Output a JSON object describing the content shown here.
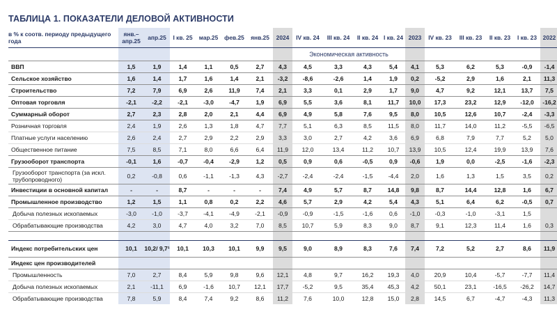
{
  "title": "ТАБЛИЦА 1. ПОКАЗАТЕЛИ ДЕЛОВОЙ АКТИВНОСТИ",
  "header": {
    "label": "в % к соотв. периоду предыдущего года",
    "columns": [
      "янв.– апр.25",
      "апр.25",
      "I кв. 25",
      "мар.25",
      "фев.25",
      "янв.25",
      "2024",
      "IV кв. 24",
      "III кв. 24",
      "II кв. 24",
      "I кв. 24",
      "2023",
      "IV кв. 23",
      "III кв. 23",
      "II кв. 23",
      "I кв. 23",
      "2022"
    ]
  },
  "section_title": "Экономическая активность",
  "rows": [
    {
      "label": "ВВП",
      "values": [
        "1,5",
        "1,9",
        "1,4",
        "1,1",
        "0,5",
        "2,7",
        "4,3",
        "4,5",
        "3,3",
        "4,3",
        "5,4",
        "4,1",
        "5,3",
        "6,2",
        "5,3",
        "-0,9",
        "-1,4"
      ]
    },
    {
      "label": "Сельское хозяйство",
      "values": [
        "1,6",
        "1,4",
        "1,7",
        "1,6",
        "1,4",
        "2,1",
        "-3,2",
        "-8,6",
        "-2,6",
        "1,4",
        "1,9",
        "0,2",
        "-5,2",
        "2,9",
        "1,6",
        "2,1",
        "11,3"
      ]
    },
    {
      "label": "Строительство",
      "values": [
        "7,2",
        "7,9",
        "6,9",
        "2,6",
        "11,9",
        "7,4",
        "2,1",
        "3,3",
        "0,1",
        "2,9",
        "1,7",
        "9,0",
        "4,7",
        "9,2",
        "12,1",
        "13,7",
        "7,5"
      ]
    },
    {
      "label": "Оптовая торговля",
      "values": [
        "-2,1",
        "-2,2",
        "-2,1",
        "-3,0",
        "-4,7",
        "1,9",
        "6,9",
        "5,5",
        "3,6",
        "8,1",
        "11,7",
        "10,0",
        "17,3",
        "23,2",
        "12,9",
        "-12,0",
        "-16,2"
      ]
    },
    {
      "label": "Суммарный оборот",
      "values": [
        "2,7",
        "2,3",
        "2,8",
        "2,0",
        "2,1",
        "4,4",
        "6,9",
        "4,9",
        "5,8",
        "7,6",
        "9,5",
        "8,0",
        "10,5",
        "12,6",
        "10,7",
        "-2,4",
        "-3,3"
      ]
    },
    {
      "label": "Розничная торговля",
      "values": [
        "2,4",
        "1,9",
        "2,6",
        "1,3",
        "1,8",
        "4,7",
        "7,7",
        "5,1",
        "6,3",
        "8,5",
        "11,5",
        "8,0",
        "11,7",
        "14,0",
        "11,2",
        "-5,5",
        "-6,5"
      ]
    },
    {
      "label": "Платные услуги населению",
      "values": [
        "2,6",
        "2,4",
        "2,7",
        "2,9",
        "2,2",
        "2,9",
        "3,3",
        "3,0",
        "2,7",
        "4,2",
        "3,6",
        "6,9",
        "6,8",
        "7,9",
        "7,7",
        "5,2",
        "5,0"
      ]
    },
    {
      "label": "Общественное питание",
      "values": [
        "7,5",
        "8,5",
        "7,1",
        "8,0",
        "6,6",
        "6,4",
        "11,9",
        "12,0",
        "13,4",
        "11,2",
        "10,7",
        "13,9",
        "10,5",
        "12,4",
        "19,9",
        "13,9",
        "7,6"
      ]
    },
    {
      "label": "Грузооборот транспорта",
      "values": [
        "-0,1",
        "1,6",
        "-0,7",
        "-0,4",
        "-2,9",
        "1,2",
        "0,5",
        "0,9",
        "0,6",
        "-0,5",
        "0,9",
        "-0,6",
        "1,9",
        "0,0",
        "-2,5",
        "-1,6",
        "-2,3"
      ]
    },
    {
      "label": "Грузооборот транспорта (за искл. трубопроводного)",
      "values": [
        "0,2",
        "-0,8",
        "0,6",
        "-1,1",
        "-1,3",
        "4,3",
        "-2,7",
        "-2,4",
        "-2,4",
        "-1,5",
        "-4,4",
        "2,0",
        "1,6",
        "1,3",
        "1,5",
        "3,5",
        "0,2"
      ]
    },
    {
      "label": "Инвестиции в основной капитал",
      "values": [
        "-",
        "-",
        "8,7",
        "-",
        "-",
        "-",
        "7,4",
        "4,9",
        "5,7",
        "8,7",
        "14,8",
        "9,8",
        "8,7",
        "14,4",
        "12,8",
        "1,6",
        "6,7"
      ]
    },
    {
      "label": "Промышленное производство",
      "values": [
        "1,2",
        "1,5",
        "1,1",
        "0,8",
        "0,2",
        "2,2",
        "4,6",
        "5,7",
        "2,9",
        "4,2",
        "5,4",
        "4,3",
        "5,1",
        "6,4",
        "6,2",
        "-0,5",
        "0,7"
      ]
    },
    {
      "label": "Добыча полезных ископаемых",
      "values": [
        "-3,0",
        "-1,0",
        "-3,7",
        "-4,1",
        "-4,9",
        "-2,1",
        "-0,9",
        "-0,9",
        "-1,5",
        "-1,6",
        "0,6",
        "-1,0",
        "-0,3",
        "-1,0",
        "-3,1",
        "1,5",
        ""
      ]
    },
    {
      "label": "Обрабатывающие производства",
      "values": [
        "4,2",
        "3,0",
        "4,7",
        "4,0",
        "3,2",
        "7,0",
        "8,5",
        "10,7",
        "5,9",
        "8,3",
        "9,0",
        "8,7",
        "9,1",
        "12,3",
        "11,4",
        "1,6",
        "0,3"
      ]
    },
    {
      "label": "Индекс потребительских цен",
      "values": [
        "10,1",
        "10,2/ 9,7¹",
        "10,1",
        "10,3",
        "10,1",
        "9,9",
        "9,5",
        "9,0",
        "8,9",
        "8,3",
        "7,6",
        "7,4",
        "7,2",
        "5,2",
        "2,7",
        "8,6",
        "11,9"
      ]
    },
    {
      "label": "Индекс цен производителей",
      "values": []
    },
    {
      "label": "Промышленность",
      "values": [
        "7,0",
        "2,7",
        "8,4",
        "5,9",
        "9,8",
        "9,6",
        "12,1",
        "4,8",
        "9,7",
        "16,2",
        "19,3",
        "4,0",
        "20,9",
        "10,4",
        "-5,7",
        "-7,7",
        "11,4"
      ]
    },
    {
      "label": "Добыча полезных ископаемых",
      "values": [
        "2,1",
        "-11,1",
        "6,9",
        "-1,6",
        "10,7",
        "12,1",
        "17,7",
        "-5,2",
        "9,5",
        "35,4",
        "45,3",
        "4,2",
        "50,1",
        "23,1",
        "-16,5",
        "-26,2",
        "14,7"
      ]
    },
    {
      "label": "Обрабатывающие производства",
      "values": [
        "7,8",
        "5,9",
        "8,4",
        "7,4",
        "9,2",
        "8,6",
        "11,2",
        "7,6",
        "10,0",
        "12,8",
        "15,0",
        "2,8",
        "14,5",
        "6,7",
        "-4,7",
        "-4,3",
        "11,3"
      ]
    }
  ]
}
